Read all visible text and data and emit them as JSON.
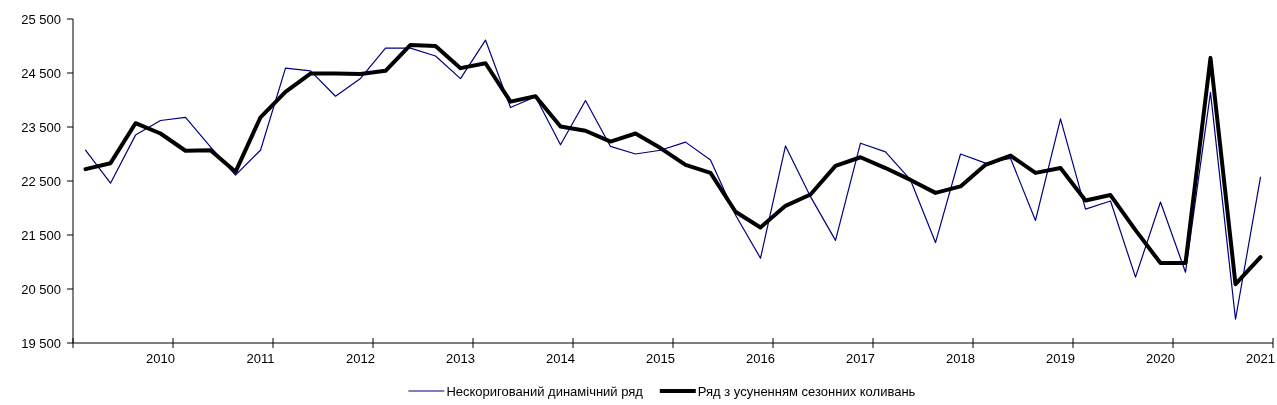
{
  "chart_data": {
    "type": "line",
    "categories": [
      null,
      null,
      null,
      "2010",
      null,
      null,
      null,
      "2011",
      null,
      null,
      null,
      "2012",
      null,
      null,
      null,
      "2013",
      null,
      null,
      null,
      "2014",
      null,
      null,
      null,
      "2015",
      null,
      null,
      null,
      "2016",
      null,
      null,
      null,
      "2017",
      null,
      null,
      null,
      "2018",
      null,
      null,
      null,
      "2019",
      null,
      null,
      null,
      "2020",
      null,
      null,
      null,
      "2021"
    ],
    "series": [
      {
        "name": "Нескоригований динамічний ряд",
        "color": "#000080",
        "values": [
          23070,
          22460,
          23350,
          23620,
          23680,
          23130,
          22610,
          23070,
          24590,
          24540,
          24070,
          24400,
          24960,
          24960,
          24815,
          24395,
          25110,
          23860,
          24060,
          23170,
          23990,
          23140,
          23000,
          23070,
          23220,
          22890,
          21870,
          21070,
          23150,
          22210,
          21400,
          23200,
          23040,
          22520,
          21360,
          23000,
          22830,
          22920,
          21770,
          23650,
          21980,
          22130,
          20720,
          22110,
          20810,
          24140,
          19940,
          22570
        ]
      },
      {
        "name": "Ряд з усуненням сезонних коливань",
        "color": "#000000",
        "values": [
          22720,
          22830,
          23570,
          23380,
          23060,
          23070,
          22670,
          23680,
          24150,
          24490,
          24490,
          24480,
          24540,
          25020,
          25000,
          24590,
          24680,
          23970,
          24070,
          23510,
          23430,
          23230,
          23380,
          23110,
          22800,
          22650,
          21930,
          21640,
          22040,
          22250,
          22780,
          22940,
          22740,
          22520,
          22280,
          22400,
          22800,
          22970,
          22650,
          22740,
          22140,
          22240,
          21590,
          20980,
          20980,
          24780,
          20590,
          21090
        ]
      }
    ],
    "ylim": [
      19500,
      25500
    ],
    "yticks": [
      {
        "value": 19500,
        "label": "19 500"
      },
      {
        "value": 20500,
        "label": "20 500"
      },
      {
        "value": 21500,
        "label": "21 500"
      },
      {
        "value": 22500,
        "label": "22 500"
      },
      {
        "value": 23500,
        "label": "23 500"
      },
      {
        "value": 24500,
        "label": "24 500"
      },
      {
        "value": 25500,
        "label": "25 500"
      }
    ],
    "legend": "bottom",
    "grid": false,
    "marker": "none",
    "line_style": "solid"
  }
}
